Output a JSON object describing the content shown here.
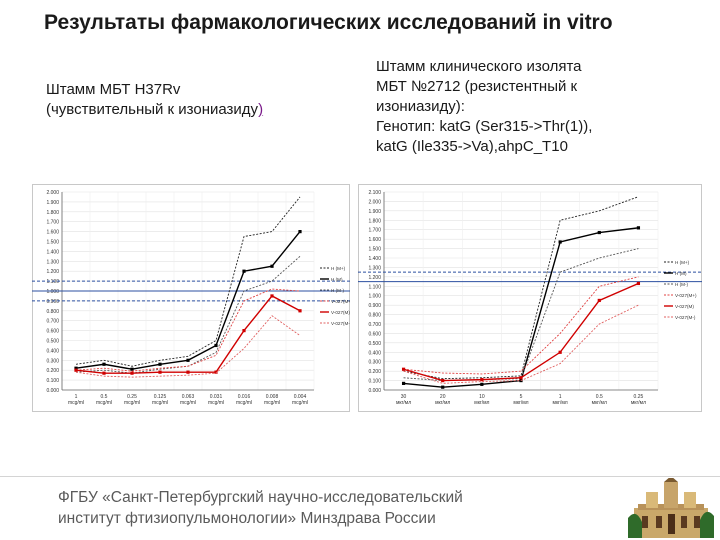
{
  "title": "Результаты фармакологических исследований in vitro",
  "left_caption": {
    "line1": "Штамм МБТ H37Rv",
    "line2_pre": "(чувствительный к изониазиду",
    "line2_paren": ")"
  },
  "right_caption": {
    "line1": "Штамм клинического изолята",
    "line2": "МБТ №2712 (резистентный к",
    "line3": "изониазиду):",
    "line4": "Генотип: katG (Ser315->Thr(1)),",
    "line5": "katG (Ile335->Va),ahpC_T10"
  },
  "footer": {
    "line1": "ФГБУ «Санкт-Петербургский научно-исследовательский",
    "line2": "институт фтизиопульмонологии» Минздрава России"
  },
  "chart_data": [
    {
      "type": "line",
      "categories": [
        "1 mcg/ml",
        "0.5 mcg/ml",
        "0.25 mcg/ml",
        "0.125 mcg/ml",
        "0.063 mcg/ml",
        "0.031 mcg/ml",
        "0.016 mcg/ml",
        "0.008 mcg/ml",
        "0.004 mcg/ml"
      ],
      "ylim": [
        0,
        2.0
      ],
      "y_ticks": [
        "0.000",
        "0.100",
        "0.200",
        "0.300",
        "0.400",
        "0.500",
        "0.600",
        "0.700",
        "0.800",
        "0.900",
        "1.000",
        "1.100",
        "1.200",
        "1.300",
        "1.400",
        "1.500",
        "1.600",
        "1.700",
        "1.800",
        "1.900",
        "2.000"
      ],
      "ref_lines": [
        1.1,
        1.0,
        0.9
      ],
      "legend": [
        "H (M+)",
        "H (M)",
        "H (M-)",
        "V-027(M+)",
        "V-027(M)",
        "V-027(M-)"
      ],
      "series": [
        {
          "name": "H (M+)",
          "color": "#222222",
          "style": "dotted",
          "values": [
            0.26,
            0.3,
            0.24,
            0.3,
            0.34,
            0.5,
            1.55,
            1.6,
            1.95
          ]
        },
        {
          "name": "H (M)",
          "color": "#000000",
          "style": "solid",
          "values": [
            0.22,
            0.26,
            0.21,
            0.26,
            0.3,
            0.45,
            1.2,
            1.25,
            1.6
          ]
        },
        {
          "name": "H (M-)",
          "color": "#555555",
          "style": "dotted",
          "values": [
            0.18,
            0.2,
            0.17,
            0.21,
            0.24,
            0.38,
            1.0,
            1.1,
            1.35
          ]
        },
        {
          "name": "V-027(M+)",
          "color": "#e04040",
          "style": "dotted",
          "values": [
            0.2,
            0.22,
            0.19,
            0.22,
            0.24,
            0.35,
            0.9,
            1.02,
            1.0
          ]
        },
        {
          "name": "V-027(M)",
          "color": "#d00000",
          "style": "solid",
          "values": [
            0.2,
            0.17,
            0.17,
            0.18,
            0.18,
            0.18,
            0.6,
            0.95,
            0.8
          ]
        },
        {
          "name": "V-027(M-)",
          "color": "#e06060",
          "style": "dotted",
          "values": [
            0.18,
            0.14,
            0.13,
            0.14,
            0.15,
            0.17,
            0.42,
            0.75,
            0.55
          ]
        }
      ]
    },
    {
      "type": "line",
      "categories": [
        "30 мкг/мл",
        "20 мкг/мл",
        "10 мкг/мл",
        "5 мкг/мл",
        "1 мкг/мл",
        "0.5 мкг/мл",
        "0.25 мкг/мл"
      ],
      "ylim": [
        0,
        2.1
      ],
      "y_ticks": [
        "0.000",
        "0.100",
        "0.200",
        "0.300",
        "0.400",
        "0.500",
        "0.600",
        "0.700",
        "0.800",
        "0.900",
        "1.000",
        "1.100",
        "1.200",
        "1.300",
        "1.400",
        "1.500",
        "1.600",
        "1.700",
        "1.800",
        "1.900",
        "2.000",
        "2.100"
      ],
      "ref_lines": [
        1.25,
        1.15
      ],
      "legend": [
        "H (M+)",
        "H (M)",
        "H (M-)",
        "V-027(M+)",
        "V-027(M)",
        "V-027(M-)"
      ],
      "series": [
        {
          "name": "H (M+)",
          "color": "#222222",
          "style": "dotted",
          "values": [
            0.2,
            0.12,
            0.13,
            0.15,
            1.8,
            1.9,
            2.05
          ]
        },
        {
          "name": "H (M)",
          "color": "#000000",
          "style": "solid",
          "values": [
            0.07,
            0.03,
            0.06,
            0.1,
            1.57,
            1.67,
            1.72
          ]
        },
        {
          "name": "H (M-)",
          "color": "#555555",
          "style": "dotted",
          "values": [
            0.13,
            0.1,
            0.11,
            0.12,
            1.25,
            1.4,
            1.5
          ]
        },
        {
          "name": "V-027(M+)",
          "color": "#e04040",
          "style": "dotted",
          "values": [
            0.22,
            0.18,
            0.17,
            0.2,
            0.6,
            1.1,
            1.2
          ]
        },
        {
          "name": "V-027(M)",
          "color": "#d00000",
          "style": "solid",
          "values": [
            0.22,
            0.1,
            0.11,
            0.13,
            0.4,
            0.95,
            1.13
          ]
        },
        {
          "name": "V-027(M-)",
          "color": "#e06060",
          "style": "dotted",
          "values": [
            0.2,
            0.07,
            0.09,
            0.1,
            0.28,
            0.7,
            0.9
          ]
        }
      ]
    }
  ]
}
